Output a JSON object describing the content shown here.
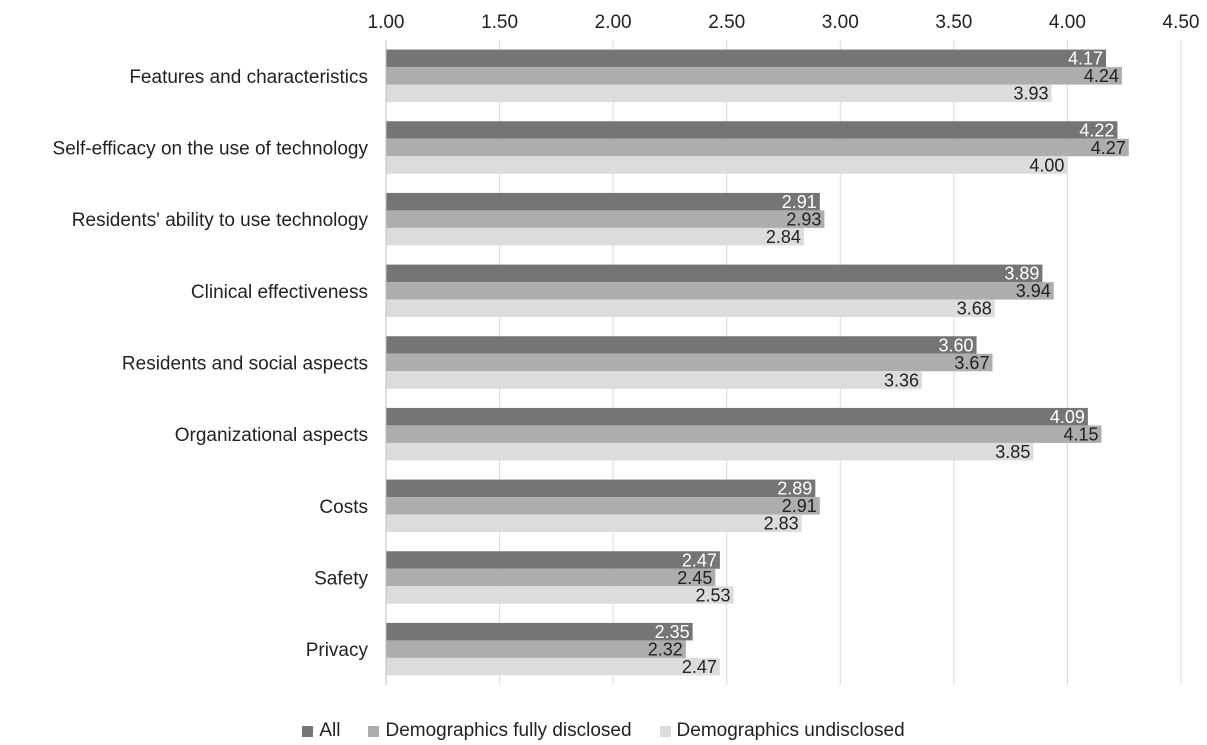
{
  "chart_data": {
    "type": "bar",
    "orientation": "horizontal",
    "title": "",
    "xlabel": "",
    "ylabel": "",
    "xlim": [
      1.0,
      4.5
    ],
    "x_ticks": [
      "1.00",
      "1.50",
      "2.00",
      "2.50",
      "3.00",
      "3.50",
      "4.00",
      "4.50"
    ],
    "x_tick_values": [
      1.0,
      1.5,
      2.0,
      2.5,
      3.0,
      3.5,
      4.0,
      4.5
    ],
    "x_axis_position": "top",
    "grid": "vertical",
    "legend_position": "bottom",
    "categories": [
      "Features and characteristics",
      "Self-efficacy on the use of technology",
      "Residents' ability to use technology",
      "Clinical effectiveness",
      "Residents and social aspects",
      "Organizational aspects",
      "Costs",
      "Safety",
      "Privacy"
    ],
    "series": [
      {
        "name": "All",
        "color": "#757575",
        "label_color": "#ffffff",
        "values": [
          4.17,
          4.22,
          2.91,
          3.89,
          3.6,
          4.09,
          2.89,
          2.47,
          2.35
        ],
        "labels": [
          "4.17",
          "4.22",
          "2.91",
          "3.89",
          "3.60",
          "4.09",
          "2.89",
          "2.47",
          "2.35"
        ]
      },
      {
        "name": "Demographics fully disclosed",
        "color": "#adadad",
        "label_color": "#222222",
        "values": [
          4.24,
          4.27,
          2.93,
          3.94,
          3.67,
          4.15,
          2.91,
          2.45,
          2.32
        ],
        "labels": [
          "4.24",
          "4.27",
          "2.93",
          "3.94",
          "3.67",
          "4.15",
          "2.91",
          "2.45",
          "2.32"
        ]
      },
      {
        "name": "Demographics undisclosed",
        "color": "#dcdcdc",
        "label_color": "#222222",
        "values": [
          3.93,
          4.0,
          2.84,
          3.68,
          3.36,
          3.85,
          2.83,
          2.53,
          2.47
        ],
        "labels": [
          "3.93",
          "4.00",
          "2.84",
          "3.68",
          "3.36",
          "3.85",
          "2.83",
          "2.53",
          "2.47"
        ]
      }
    ]
  }
}
